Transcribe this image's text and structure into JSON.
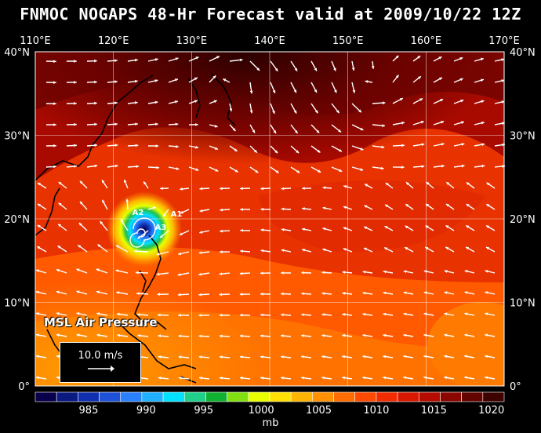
{
  "title": "FNMOC NOGAPS 48-Hr Forecast valid at 2009/10/22 12Z",
  "lon_labels": [
    "110°E",
    "120°E",
    "130°E",
    "140°E",
    "150°E",
    "160°E",
    "170°E"
  ],
  "lat_labels": [
    "40°N",
    "30°N",
    "20°N",
    "10°N",
    "0°"
  ],
  "legend_title": "MSL Air Pressure",
  "reference_vector_label": "10.0 m/s",
  "colorbar": {
    "unit": "mb",
    "labels": [
      "985",
      "990",
      "995",
      "1000",
      "1005",
      "1010",
      "1015",
      "1020"
    ],
    "colors": [
      "#08004a",
      "#0a1a80",
      "#1030b0",
      "#1e50d8",
      "#2a80ff",
      "#20b0ff",
      "#00e0ff",
      "#20d08a",
      "#10b030",
      "#80e010",
      "#e8ff00",
      "#ffe000",
      "#ffb400",
      "#ff9000",
      "#ff6c00",
      "#ff4a00",
      "#f02c00",
      "#d81800",
      "#b40c00",
      "#8c0600",
      "#640400",
      "#3e0200"
    ]
  },
  "storm_markers": [
    "A1",
    "A2",
    "A3"
  ]
}
